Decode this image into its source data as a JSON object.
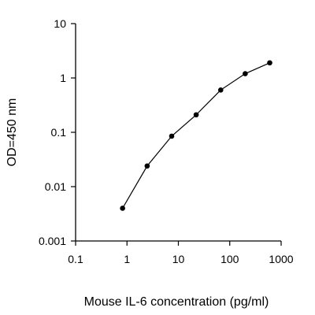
{
  "chart_data": {
    "type": "line",
    "title": "",
    "xlabel": "Mouse IL-6 concentration (pg/ml)",
    "ylabel": "OD=450 nm",
    "x_scale": "log",
    "y_scale": "log",
    "xlim": [
      0.1,
      1000
    ],
    "ylim": [
      0.001,
      10
    ],
    "x_ticks": [
      "0.1",
      "1",
      "10",
      "100",
      "1000"
    ],
    "y_ticks": [
      "0.001",
      "0.01",
      "0.1",
      "1",
      "10"
    ],
    "grid": false,
    "legend": "none",
    "series": [
      {
        "x": [
          0.82,
          2.47,
          7.41,
          22.2,
          66.7,
          200,
          600
        ],
        "y": [
          0.004,
          0.024,
          0.085,
          0.21,
          0.6,
          1.2,
          1.9
        ]
      }
    ]
  }
}
